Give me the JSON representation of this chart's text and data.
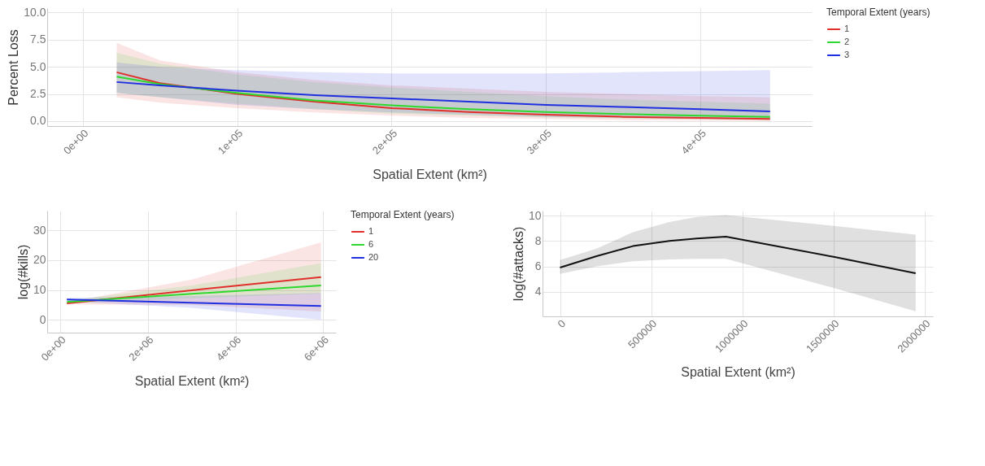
{
  "chart_data": [
    {
      "type": "line",
      "xlabel": "Spatial Extent (km²)",
      "ylabel": "Percent Loss",
      "legend_title": "Temporal Extent (years)",
      "legend": "right",
      "grid": true,
      "x": [
        22000,
        50000,
        100000,
        150000,
        200000,
        250000,
        300000,
        350000,
        400000,
        445000
      ],
      "xlim": [
        -23000,
        472000
      ],
      "ylim": [
        -0.45,
        10.4
      ],
      "xticks": [
        {
          "value": 0,
          "label": "0e+00"
        },
        {
          "value": 100000,
          "label": "1e+05"
        },
        {
          "value": 200000,
          "label": "2e+05"
        },
        {
          "value": 300000,
          "label": "3e+05"
        },
        {
          "value": 400000,
          "label": "4e+05"
        }
      ],
      "yticks": [
        {
          "value": 0,
          "label": "0.0"
        },
        2.5,
        {
          "value": 5,
          "label": "5.0"
        },
        7.5,
        {
          "value": 10,
          "label": "10.0"
        }
      ],
      "series": [
        {
          "name": "1",
          "color": "#e0302c",
          "values": [
            4.5,
            3.5,
            2.5,
            1.8,
            1.2,
            0.85,
            0.6,
            0.4,
            0.3,
            0.2
          ],
          "lower": [
            2.2,
            1.7,
            1.2,
            0.8,
            0.5,
            0.3,
            0.2,
            0.1,
            0.05,
            0
          ],
          "upper": [
            7.2,
            5.6,
            4.5,
            3.8,
            3.3,
            3.0,
            2.7,
            2.5,
            2.3,
            2.2
          ]
        },
        {
          "name": "2",
          "color": "#2ed82e",
          "values": [
            4.1,
            3.4,
            2.6,
            1.9,
            1.45,
            1.1,
            0.85,
            0.65,
            0.5,
            0.4
          ],
          "lower": [
            2.6,
            2.2,
            1.6,
            1.1,
            0.7,
            0.5,
            0.35,
            0.25,
            0.2,
            0.1
          ],
          "upper": [
            6.3,
            5.3,
            4.3,
            3.6,
            3.1,
            2.7,
            2.3,
            2.0,
            1.8,
            1.6
          ]
        },
        {
          "name": "3",
          "color": "#2030e0",
          "values": [
            3.6,
            3.3,
            2.8,
            2.4,
            2.1,
            1.8,
            1.5,
            1.3,
            1.1,
            0.9
          ],
          "lower": [
            2.6,
            2.2,
            1.5,
            1.1,
            0.8,
            0.6,
            0.4,
            0.3,
            0.2,
            0.15
          ],
          "upper": [
            5.4,
            5.0,
            4.7,
            4.5,
            4.4,
            4.4,
            4.4,
            4.5,
            4.6,
            4.7
          ]
        }
      ]
    },
    {
      "type": "line",
      "xlabel": "Spatial Extent (km²)",
      "ylabel": "log(#kills)",
      "legend_title": "Temporal Extent (years)",
      "legend": "right",
      "grid": true,
      "x": [
        150000,
        3000000,
        5950000
      ],
      "xlim": [
        -300000,
        6290000
      ],
      "ylim": [
        -4.3,
        36.6
      ],
      "xticks": [
        {
          "value": 0,
          "label": "0e+00"
        },
        {
          "value": 2000000,
          "label": "2e+06"
        },
        {
          "value": 4000000,
          "label": "4e+06"
        },
        {
          "value": 6000000,
          "label": "6e+06"
        }
      ],
      "yticks": [
        0,
        10,
        20,
        30
      ],
      "series": [
        {
          "name": "1",
          "color": "#e0302c",
          "values": [
            5.5,
            9.9,
            14.3
          ],
          "lower": [
            5.2,
            5.0,
            2.8
          ],
          "upper": [
            5.9,
            13.5,
            26
          ]
        },
        {
          "name": "6",
          "color": "#2ed82e",
          "values": [
            6,
            8.7,
            11.5
          ],
          "lower": [
            5.5,
            7.2,
            8.8
          ],
          "upper": [
            6.5,
            11.5,
            19
          ]
        },
        {
          "name": "20",
          "color": "#2030e0",
          "values": [
            6.8,
            5.7,
            4.6
          ],
          "lower": [
            6.2,
            4.0,
            0
          ],
          "upper": [
            7.3,
            8.0,
            9
          ]
        }
      ]
    },
    {
      "type": "line",
      "xlabel": "Spatial Extent (km²)",
      "ylabel": "log(#attacks)",
      "grid": true,
      "x": [
        0,
        200000,
        400000,
        600000,
        750000,
        910000,
        1500000,
        1950000
      ],
      "xlim": [
        -96000,
        2045000
      ],
      "ylim": [
        2.05,
        10.4
      ],
      "xticks": [
        0,
        500000,
        1000000,
        1500000,
        2000000
      ],
      "yticks": [
        4,
        6,
        8,
        10
      ],
      "series": [
        {
          "color": "#111111",
          "values": [
            5.9,
            6.8,
            7.6,
            8.0,
            8.2,
            8.35,
            6.75,
            5.45
          ],
          "lower": [
            5.4,
            6.0,
            6.4,
            6.55,
            6.6,
            6.6,
            4.3,
            2.45
          ],
          "upper": [
            6.5,
            7.4,
            8.7,
            9.5,
            9.9,
            10.05,
            9.2,
            8.5
          ]
        }
      ]
    }
  ]
}
